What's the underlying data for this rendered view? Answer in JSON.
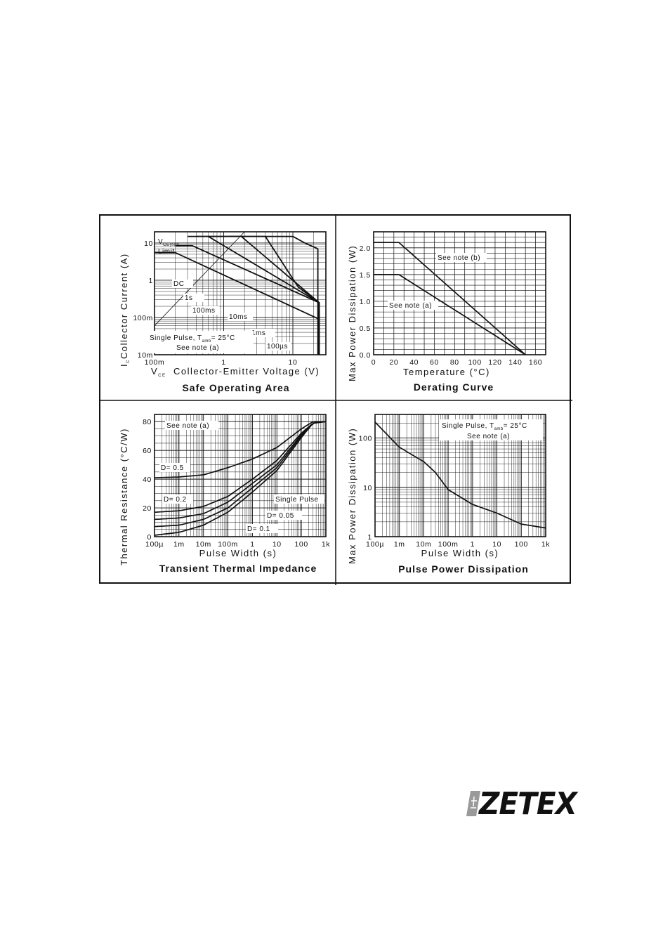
{
  "chart_data": [
    {
      "type": "line",
      "title": "Safe Operating Area",
      "xlabel_symbol": "V",
      "xlabel_symbol_sub": "CE",
      "xlabel": "Collector-Emitter Voltage (V)",
      "ylabel_symbol": "I",
      "ylabel_symbol_sub": "C",
      "ylabel": "Collector Current (A)",
      "xscale": "log",
      "yscale": "log",
      "xlim": [
        0.1,
        30
      ],
      "ylim": [
        0.01,
        20
      ],
      "xticks": [
        {
          "v": 0.1,
          "label": "100m"
        },
        {
          "v": 1,
          "label": "1"
        },
        {
          "v": 10,
          "label": "10"
        }
      ],
      "yticks": [
        {
          "v": 0.01,
          "label": "10m"
        },
        {
          "v": 0.1,
          "label": "100m"
        },
        {
          "v": 1,
          "label": "1"
        },
        {
          "v": 10,
          "label": "10"
        }
      ],
      "series": [
        {
          "name": "DC",
          "points": [
            [
              0.1,
              5.5
            ],
            [
              0.2,
              5.5
            ],
            [
              24,
              0.09
            ],
            [
              24,
              0.01
            ]
          ]
        },
        {
          "name": "1s",
          "points": [
            [
              0.2,
              8.5
            ],
            [
              0.35,
              8.5
            ],
            [
              24,
              0.25
            ],
            [
              24,
              0.01
            ]
          ]
        },
        {
          "name": "100ms",
          "points": [
            [
              0.3,
              15
            ],
            [
              0.6,
              15
            ],
            [
              24,
              0.25
            ],
            [
              24,
              0.01
            ]
          ]
        },
        {
          "name": "10ms",
          "points": [
            [
              0.4,
              15
            ],
            [
              1.8,
              15
            ],
            [
              24,
              0.25
            ],
            [
              24,
              0.01
            ]
          ]
        },
        {
          "name": "1ms",
          "points": [
            [
              0.6,
              15
            ],
            [
              4,
              15
            ],
            [
              12,
              0.65
            ],
            [
              24,
              0.25
            ],
            [
              24,
              0.01
            ]
          ]
        },
        {
          "name": "100µs",
          "points": [
            [
              1.2,
              15
            ],
            [
              10,
              15
            ],
            [
              15,
              10
            ],
            [
              23,
              7
            ],
            [
              23,
              0.01
            ]
          ]
        }
      ],
      "annotations": [
        {
          "text": "V",
          "sub": "CE(sat)"
        },
        {
          "text": "Limit"
        },
        {
          "text": "DC"
        },
        {
          "text": "1s"
        },
        {
          "text": "100ms"
        },
        {
          "text": "10ms"
        },
        {
          "text": "1ms"
        },
        {
          "text": "100µs"
        },
        {
          "text": "Single Pulse, T",
          "sub": "amb",
          "tail": "= 25°C"
        },
        {
          "text": "See note (a)"
        }
      ]
    },
    {
      "type": "line",
      "title": "Derating Curve",
      "xlabel": "Temperature (°C)",
      "ylabel": "Max Power Dissipation (W)",
      "xlim": [
        0,
        170
      ],
      "ylim": [
        0,
        2.3
      ],
      "xticks": [
        0,
        20,
        40,
        60,
        80,
        100,
        120,
        140,
        160
      ],
      "yticks": [
        0.0,
        0.5,
        1.0,
        1.5,
        2.0
      ],
      "ytick_labels": [
        "0.0",
        "0.5",
        "1.0",
        "1.5",
        "2.0"
      ],
      "series": [
        {
          "name": "See note (b)",
          "x": [
            0,
            25,
            150
          ],
          "y": [
            2.1,
            2.1,
            0
          ]
        },
        {
          "name": "See note (a)",
          "x": [
            0,
            25,
            150
          ],
          "y": [
            1.5,
            1.5,
            0
          ]
        }
      ]
    },
    {
      "type": "line",
      "title": "Transient Thermal Impedance",
      "xlabel": "Pulse Width (s)",
      "ylabel": "Thermal Resistance (°C/W)",
      "xscale": "log",
      "xlim": [
        0.0001,
        1000
      ],
      "ylim": [
        0,
        85
      ],
      "xticks": [
        {
          "v": 0.0001,
          "label": "100µ"
        },
        {
          "v": 0.001,
          "label": "1m"
        },
        {
          "v": 0.01,
          "label": "10m"
        },
        {
          "v": 0.1,
          "label": "100m"
        },
        {
          "v": 1,
          "label": "1"
        },
        {
          "v": 10,
          "label": "10"
        },
        {
          "v": 100,
          "label": "100"
        },
        {
          "v": 1000,
          "label": "1k"
        }
      ],
      "yticks": [
        0,
        20,
        40,
        60,
        80
      ],
      "series": [
        {
          "name": "D= 0.5",
          "x": [
            0.0001,
            0.001,
            0.01,
            0.1,
            1,
            10,
            100,
            300,
            1000
          ],
          "y": [
            41,
            41.5,
            43,
            48,
            54,
            62,
            75,
            80,
            80
          ]
        },
        {
          "name": "D= 0.2",
          "x": [
            0.0001,
            0.001,
            0.01,
            0.1,
            1,
            10,
            100,
            300,
            1000
          ],
          "y": [
            17,
            18,
            21,
            28,
            40,
            53,
            72,
            79,
            80
          ]
        },
        {
          "name": "D= 0.1",
          "x": [
            0.0001,
            0.001,
            0.01,
            0.1,
            1,
            10,
            100,
            300,
            1000
          ],
          "y": [
            12,
            13,
            16,
            24,
            37,
            50,
            71,
            79,
            80
          ]
        },
        {
          "name": "D= 0.05",
          "x": [
            0.0001,
            0.001,
            0.01,
            0.1,
            1,
            10,
            100,
            300,
            1000
          ],
          "y": [
            7,
            8,
            12,
            20,
            34,
            48,
            70,
            79,
            80
          ]
        },
        {
          "name": "Single Pulse",
          "x": [
            0.0001,
            0.001,
            0.01,
            0.1,
            1,
            10,
            100,
            300,
            1000
          ],
          "y": [
            1,
            3,
            8,
            17,
            31,
            46,
            69,
            79,
            80
          ]
        }
      ],
      "annotations": [
        {
          "text": "See note (a)"
        }
      ]
    },
    {
      "type": "line",
      "title": "Pulse Power Dissipation",
      "xlabel": "Pulse Width (s)",
      "ylabel": "Max Power Dissipation (W)",
      "xscale": "log",
      "yscale": "log",
      "xlim": [
        0.0001,
        1000
      ],
      "ylim": [
        1,
        300
      ],
      "xticks": [
        {
          "v": 0.0001,
          "label": "100µ"
        },
        {
          "v": 0.001,
          "label": "1m"
        },
        {
          "v": 0.01,
          "label": "10m"
        },
        {
          "v": 0.1,
          "label": "100m"
        },
        {
          "v": 1,
          "label": "1"
        },
        {
          "v": 10,
          "label": "10"
        },
        {
          "v": 100,
          "label": "100"
        },
        {
          "v": 1000,
          "label": "1k"
        }
      ],
      "yticks": [
        {
          "v": 1,
          "label": "1"
        },
        {
          "v": 10,
          "label": "10"
        },
        {
          "v": 100,
          "label": "100"
        }
      ],
      "series": [
        {
          "name": "Single Pulse",
          "x": [
            0.0001,
            0.001,
            0.01,
            0.03,
            0.1,
            1,
            10,
            100,
            1000
          ],
          "y": [
            210,
            65,
            33,
            20,
            9,
            4.5,
            3,
            1.8,
            1.5
          ]
        }
      ],
      "annotations": [
        {
          "text": "Single Pulse, T",
          "sub": "amb",
          "tail": "= 25°C"
        },
        {
          "text": "See note (a)"
        }
      ]
    }
  ],
  "logo": {
    "text": "ZETEX",
    "icon": "zetex-logo-mark-icon"
  }
}
